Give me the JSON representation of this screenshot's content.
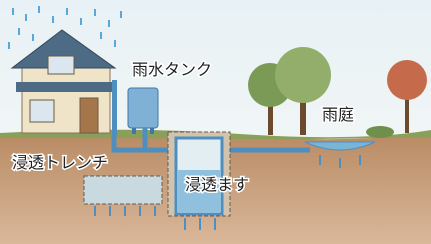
{
  "labels": {
    "rain_tank": "雨水タンク",
    "rain_garden": "雨庭",
    "infiltration_trench": "浸透トレンチ",
    "infiltration_basin": "浸透ます"
  }
}
